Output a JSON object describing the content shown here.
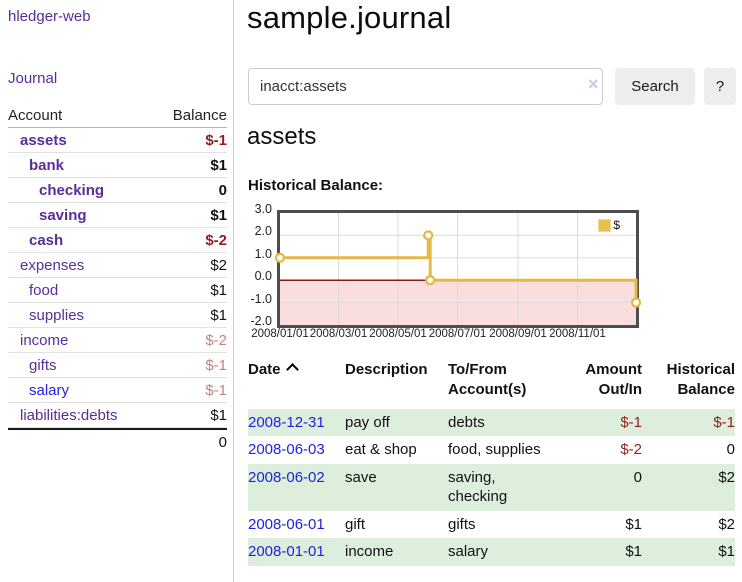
{
  "colors": {
    "link_purple": "#5a2d9a",
    "link_blue": "#2222dd",
    "negative_red": "#941e1e",
    "negative_soft_red": "#c48282",
    "row_green": "#ddeedd",
    "chart_gold": "#e4ba45",
    "negative_fill": "#fadddd",
    "zero_line": "#8b1a1a",
    "button_gray": "#ededed"
  },
  "sidebar": {
    "app_title": "hledger-web",
    "journal_link": "Journal",
    "accounts_table": {
      "header": {
        "account": "Account",
        "balance": "Balance"
      },
      "rows": [
        {
          "name": "assets",
          "balance": "$-1"
        },
        {
          "name": "bank",
          "balance": "$1"
        },
        {
          "name": "checking",
          "balance": "0"
        },
        {
          "name": "saving",
          "balance": "$1"
        },
        {
          "name": "cash",
          "balance": "$-2"
        },
        {
          "name": "expenses",
          "balance": "$2"
        },
        {
          "name": "food",
          "balance": "$1"
        },
        {
          "name": "supplies",
          "balance": "$1"
        },
        {
          "name": "income",
          "balance": "$-2"
        },
        {
          "name": "gifts",
          "balance": "$-1"
        },
        {
          "name": "salary",
          "balance": "$-1"
        },
        {
          "name": "liabilities:debts",
          "balance": "$1"
        }
      ],
      "total": "0"
    }
  },
  "main": {
    "title": "sample.journal",
    "search": {
      "value": "inacct:assets",
      "clear_icon": "×",
      "button_label": "Search",
      "help_label": "?"
    },
    "account_heading": "assets",
    "chart_title": "Historical Balance:"
  },
  "chart_data": {
    "type": "line",
    "step": true,
    "title": "Historical Balance",
    "series": [
      {
        "name": "$",
        "points": [
          {
            "date": "2008-01-01",
            "value": 1
          },
          {
            "date": "2008-06-01",
            "value": 2
          },
          {
            "date": "2008-06-03",
            "value": 0
          },
          {
            "date": "2008-12-31",
            "value": -1
          }
        ]
      }
    ],
    "x_range": [
      "2008-01-01",
      "2008-12-31"
    ],
    "x_ticks": [
      "2008/01/01",
      "2008/03/01",
      "2008/05/01",
      "2008/07/01",
      "2008/09/01",
      "2008/11/01"
    ],
    "y_ticks": [
      3.0,
      2.0,
      1.0,
      0.0,
      -1.0,
      -2.0
    ],
    "ylim": [
      -2,
      3
    ],
    "grid": true,
    "legend": {
      "label": "$",
      "position": "top-right"
    }
  },
  "register": {
    "headers": {
      "date": "Date",
      "description": "Description",
      "accounts": "To/From Account(s)",
      "amount": "Amount Out/In",
      "balance": "Historical Balance"
    },
    "rows": [
      {
        "date": "2008-12-31",
        "description": "pay off",
        "accounts": "debts",
        "amount": "$-1",
        "balance": "$-1"
      },
      {
        "date": "2008-06-03",
        "description": "eat & shop",
        "accounts": "food, supplies",
        "amount": "$-2",
        "balance": "0"
      },
      {
        "date": "2008-06-02",
        "description": "save",
        "accounts": "saving, checking",
        "amount": "0",
        "balance": "$2"
      },
      {
        "date": "2008-06-01",
        "description": "gift",
        "accounts": "gifts",
        "amount": "$1",
        "balance": "$2"
      },
      {
        "date": "2008-01-01",
        "description": "income",
        "accounts": "salary",
        "amount": "$1",
        "balance": "$1"
      }
    ]
  }
}
